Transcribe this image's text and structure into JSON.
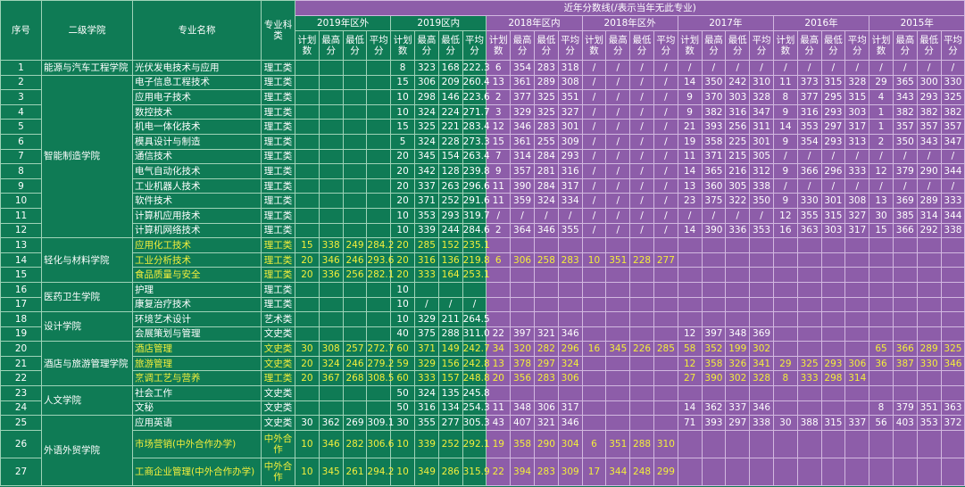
{
  "header": {
    "title": "近年分数线(/表示当年无此专业)",
    "fixed": [
      "序号",
      "二级学院",
      "专业名称",
      "专业科类"
    ],
    "groups": [
      "2019年区外",
      "2019区内",
      "2018年区内",
      "2018年区外",
      "2017年",
      "2016年",
      "2015年"
    ],
    "subs": [
      "计划数",
      "最高分",
      "最低分",
      "平均分"
    ]
  },
  "colleges": [
    {
      "name": "能源与汽车工程学院",
      "rows": [
        {
          "no": "1",
          "major": "光伏发电技术与应用",
          "type": "理工类",
          "scores": [
            null,
            null,
            null,
            null,
            "8",
            "323",
            "168",
            "222.3",
            "6",
            "354",
            "283",
            "318",
            "/",
            "/",
            "/",
            "/",
            "/",
            "/",
            "/",
            "/",
            "/",
            "/",
            "/",
            "/",
            "/",
            "/",
            "/",
            "/"
          ]
        }
      ]
    },
    {
      "name": "智能制造学院",
      "rows": [
        {
          "no": "2",
          "major": "电子信息工程技术",
          "type": "理工类",
          "scores": [
            null,
            null,
            null,
            null,
            "15",
            "306",
            "209",
            "260.4",
            "13",
            "361",
            "289",
            "308",
            "/",
            "/",
            "/",
            "/",
            "14",
            "350",
            "242",
            "310",
            "11",
            "373",
            "315",
            "328",
            "29",
            "365",
            "300",
            "330"
          ]
        },
        {
          "no": "3",
          "major": "应用电子技术",
          "type": "理工类",
          "scores": [
            null,
            null,
            null,
            null,
            "10",
            "298",
            "146",
            "223.6",
            "2",
            "377",
            "325",
            "351",
            "/",
            "/",
            "/",
            "/",
            "9",
            "370",
            "303",
            "328",
            "8",
            "377",
            "295",
            "315",
            "4",
            "343",
            "293",
            "325"
          ]
        },
        {
          "no": "4",
          "major": "数控技术",
          "type": "理工类",
          "scores": [
            null,
            null,
            null,
            null,
            "10",
            "324",
            "224",
            "271.7",
            "3",
            "329",
            "325",
            "327",
            "/",
            "/",
            "/",
            "/",
            "9",
            "382",
            "316",
            "347",
            "9",
            "316",
            "293",
            "303",
            "1",
            "382",
            "382",
            "382"
          ]
        },
        {
          "no": "5",
          "major": "机电一体化技术",
          "type": "理工类",
          "scores": [
            null,
            null,
            null,
            null,
            "15",
            "325",
            "221",
            "283.4",
            "12",
            "346",
            "283",
            "301",
            "/",
            "/",
            "/",
            "/",
            "21",
            "393",
            "256",
            "311",
            "14",
            "353",
            "297",
            "317",
            "1",
            "357",
            "357",
            "357"
          ]
        },
        {
          "no": "6",
          "major": "模具设计与制造",
          "type": "理工类",
          "scores": [
            null,
            null,
            null,
            null,
            "5",
            "324",
            "228",
            "273.3",
            "15",
            "361",
            "255",
            "309",
            "/",
            "/",
            "/",
            "/",
            "19",
            "358",
            "225",
            "301",
            "9",
            "354",
            "293",
            "313",
            "2",
            "350",
            "343",
            "347"
          ]
        },
        {
          "no": "7",
          "major": "通信技术",
          "type": "理工类",
          "scores": [
            null,
            null,
            null,
            null,
            "20",
            "345",
            "154",
            "263.4",
            "7",
            "314",
            "284",
            "293",
            "/",
            "/",
            "/",
            "/",
            "11",
            "371",
            "215",
            "305",
            "/",
            "/",
            "/",
            "/",
            "/",
            "/",
            "/",
            "/"
          ]
        },
        {
          "no": "8",
          "major": "电气自动化技术",
          "type": "理工类",
          "scores": [
            null,
            null,
            null,
            null,
            "20",
            "342",
            "128",
            "239.8",
            "9",
            "357",
            "281",
            "316",
            "/",
            "/",
            "/",
            "/",
            "14",
            "365",
            "216",
            "312",
            "9",
            "366",
            "296",
            "333",
            "12",
            "379",
            "290",
            "344"
          ]
        },
        {
          "no": "9",
          "major": "工业机器人技术",
          "type": "理工类",
          "scores": [
            null,
            null,
            null,
            null,
            "20",
            "337",
            "263",
            "296.6",
            "11",
            "390",
            "284",
            "317",
            "/",
            "/",
            "/",
            "/",
            "13",
            "360",
            "305",
            "338",
            "/",
            "/",
            "/",
            "/",
            "/",
            "/",
            "/",
            "/"
          ]
        },
        {
          "no": "10",
          "major": "软件技术",
          "type": "理工类",
          "scores": [
            null,
            null,
            null,
            null,
            "20",
            "371",
            "252",
            "291.6",
            "11",
            "359",
            "324",
            "334",
            "/",
            "/",
            "/",
            "/",
            "23",
            "375",
            "322",
            "350",
            "9",
            "330",
            "301",
            "308",
            "13",
            "369",
            "289",
            "333"
          ]
        },
        {
          "no": "11",
          "major": "计算机应用技术",
          "type": "理工类",
          "scores": [
            null,
            null,
            null,
            null,
            "10",
            "353",
            "293",
            "319.7",
            "/",
            "/",
            "/",
            "/",
            "/",
            "/",
            "/",
            "/",
            "/",
            "/",
            "/",
            "/",
            "12",
            "355",
            "315",
            "327",
            "30",
            "385",
            "314",
            "344"
          ]
        },
        {
          "no": "12",
          "major": "计算机网络技术",
          "type": "理工类",
          "scores": [
            null,
            null,
            null,
            null,
            "10",
            "339",
            "244",
            "284.6",
            "2",
            "364",
            "346",
            "355",
            "/",
            "/",
            "/",
            "/",
            "14",
            "390",
            "336",
            "353",
            "16",
            "363",
            "303",
            "317",
            "15",
            "366",
            "292",
            "338"
          ]
        }
      ]
    },
    {
      "name": "轻化与材料学院",
      "rows": [
        {
          "no": "13",
          "major": "应用化工技术",
          "type": "理工类",
          "scores": [
            "15",
            "338",
            "249",
            "284.2",
            "20",
            "285",
            "152",
            "235.1",
            null,
            null,
            null,
            null,
            null,
            null,
            null,
            null,
            null,
            null,
            null,
            null,
            null,
            null,
            null,
            null,
            null,
            null,
            null,
            null
          ]
        },
        {
          "no": "14",
          "major": "工业分析技术",
          "type": "理工类",
          "scores": [
            "20",
            "346",
            "246",
            "293.6",
            "20",
            "316",
            "136",
            "219.8",
            "6",
            "306",
            "258",
            "283",
            "10",
            "351",
            "228",
            "277",
            null,
            null,
            null,
            null,
            null,
            null,
            null,
            null,
            null,
            null,
            null,
            null
          ]
        },
        {
          "no": "15",
          "major": "食品质量与安全",
          "type": "理工类",
          "scores": [
            "20",
            "336",
            "256",
            "282.1",
            "20",
            "333",
            "164",
            "253.1",
            null,
            null,
            null,
            null,
            null,
            null,
            null,
            null,
            null,
            null,
            null,
            null,
            null,
            null,
            null,
            null,
            null,
            null,
            null,
            null
          ]
        }
      ]
    },
    {
      "name": "医药卫生学院",
      "rows": [
        {
          "no": "16",
          "major": "护理",
          "type": "理工类",
          "scores": [
            null,
            null,
            null,
            null,
            "10",
            null,
            null,
            null,
            null,
            null,
            null,
            null,
            null,
            null,
            null,
            null,
            null,
            null,
            null,
            null,
            null,
            null,
            null,
            null,
            null,
            null,
            null,
            null
          ]
        },
        {
          "no": "17",
          "major": "康复治疗技术",
          "type": "理工类",
          "scores": [
            null,
            null,
            null,
            null,
            "10",
            "/",
            "/",
            "/",
            null,
            null,
            null,
            null,
            null,
            null,
            null,
            null,
            null,
            null,
            null,
            null,
            null,
            null,
            null,
            null,
            null,
            null,
            null,
            null
          ]
        }
      ]
    },
    {
      "name": "设计学院",
      "rows": [
        {
          "no": "18",
          "major": "环境艺术设计",
          "type": "艺术类",
          "scores": [
            null,
            null,
            null,
            null,
            "10",
            "329",
            "211",
            "264.5",
            null,
            null,
            null,
            null,
            null,
            null,
            null,
            null,
            null,
            null,
            null,
            null,
            null,
            null,
            null,
            null,
            null,
            null,
            null,
            null
          ]
        },
        {
          "no": "19",
          "major": "会展策划与管理",
          "type": "文史类",
          "scores": [
            null,
            null,
            null,
            null,
            "40",
            "375",
            "288",
            "311.0",
            "22",
            "397",
            "321",
            "346",
            null,
            null,
            null,
            null,
            "12",
            "397",
            "348",
            "369",
            null,
            null,
            null,
            null,
            null,
            null,
            null,
            null
          ]
        }
      ]
    },
    {
      "name": "酒店与旅游管理学院",
      "rows": [
        {
          "no": "20",
          "major": "酒店管理",
          "type": "文史类",
          "scores": [
            "30",
            "308",
            "257",
            "272.7",
            "60",
            "371",
            "149",
            "242.7",
            "34",
            "320",
            "282",
            "296",
            "16",
            "345",
            "226",
            "285",
            "58",
            "352",
            "199",
            "302",
            null,
            null,
            null,
            null,
            "65",
            "366",
            "289",
            "325"
          ]
        },
        {
          "no": "21",
          "major": "旅游管理",
          "type": "文史类",
          "scores": [
            "20",
            "324",
            "246",
            "279.2",
            "59",
            "329",
            "156",
            "242.8",
            "13",
            "378",
            "297",
            "324",
            null,
            null,
            null,
            null,
            "12",
            "358",
            "326",
            "341",
            "29",
            "325",
            "293",
            "306",
            "36",
            "387",
            "330",
            "346"
          ]
        },
        {
          "no": "22",
          "major": "烹调工艺与营养",
          "type": "理工类",
          "scores": [
            "20",
            "367",
            "268",
            "308.5",
            "60",
            "333",
            "157",
            "248.8",
            "20",
            "356",
            "283",
            "306",
            null,
            null,
            null,
            null,
            "27",
            "390",
            "302",
            "328",
            "8",
            "333",
            "298",
            "314",
            null,
            null,
            null,
            null
          ]
        }
      ]
    },
    {
      "name": "人文学院",
      "rows": [
        {
          "no": "23",
          "major": "社会工作",
          "type": "文史类",
          "scores": [
            null,
            null,
            null,
            null,
            "50",
            "324",
            "135",
            "245.8",
            null,
            null,
            null,
            null,
            null,
            null,
            null,
            null,
            null,
            null,
            null,
            null,
            null,
            null,
            null,
            null,
            null,
            null,
            null,
            null
          ]
        },
        {
          "no": "24",
          "major": "文秘",
          "type": "文史类",
          "scores": [
            null,
            null,
            null,
            null,
            "50",
            "316",
            "134",
            "254.3",
            "11",
            "348",
            "306",
            "317",
            null,
            null,
            null,
            null,
            "14",
            "362",
            "337",
            "346",
            null,
            null,
            null,
            null,
            "8",
            "379",
            "351",
            "363"
          ]
        }
      ]
    },
    {
      "name": "外语外贸学院",
      "rows": [
        {
          "no": "25",
          "major": "应用英语",
          "type": "文史类",
          "scores": [
            "30",
            "362",
            "269",
            "309.1",
            "30",
            "355",
            "277",
            "305.3",
            "43",
            "407",
            "321",
            "346",
            null,
            null,
            null,
            null,
            "71",
            "393",
            "297",
            "338",
            "30",
            "388",
            "315",
            "337",
            "56",
            "403",
            "353",
            "372"
          ]
        },
        {
          "no": "26",
          "major": "市场营销(中外合作办学)",
          "type": "中外合作",
          "scores": [
            "10",
            "346",
            "282",
            "306.6",
            "10",
            "339",
            "252",
            "292.1",
            "19",
            "358",
            "290",
            "304",
            "6",
            "351",
            "288",
            "310",
            null,
            null,
            null,
            null,
            null,
            null,
            null,
            null,
            null,
            null,
            null,
            null
          ]
        },
        {
          "no": "27",
          "major": "工商企业管理(中外合作办学)",
          "type": "中外合作",
          "scores": [
            "10",
            "345",
            "261",
            "294.2",
            "10",
            "349",
            "286",
            "315.9",
            "22",
            "394",
            "283",
            "309",
            "17",
            "344",
            "248",
            "299",
            null,
            null,
            null,
            null,
            null,
            null,
            null,
            null,
            null,
            null,
            null,
            null
          ]
        }
      ]
    }
  ]
}
